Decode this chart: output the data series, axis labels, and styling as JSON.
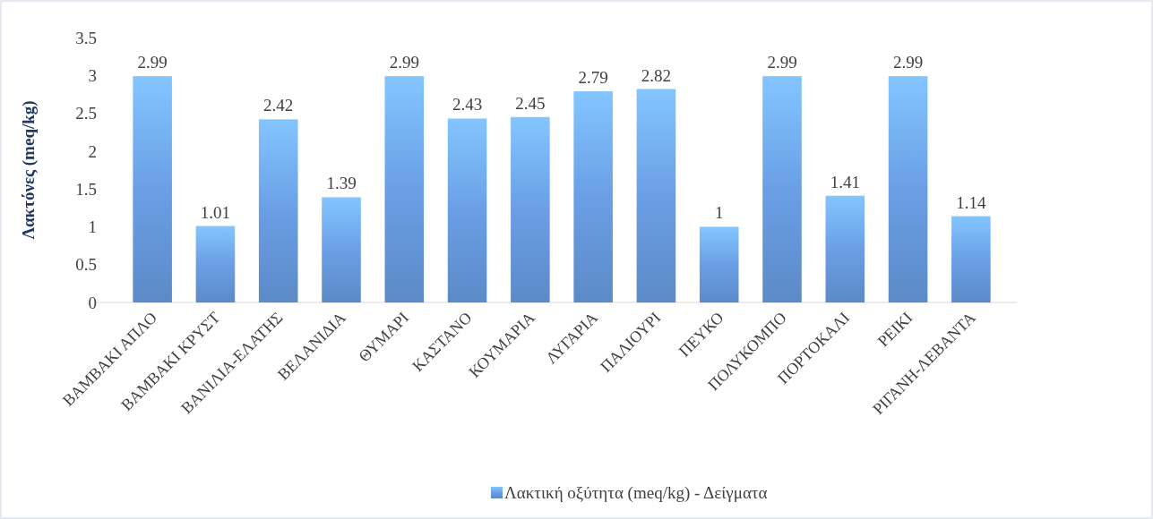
{
  "chart_data": {
    "type": "bar",
    "ylabel": "Λακτόνες (meq/kg)",
    "categories": [
      "ΒΑΜΒΑΚΙ ΑΠΛΟ",
      "ΒΑΜΒΑΚΙ ΚΡΥΣΤ",
      "ΒΑΝΙΛΙΑ-ΕΛΑΤΗΣ",
      "ΒΕΛΑΝΙΔΙΑ",
      "ΘΥΜΑΡΙ",
      "ΚΑΣΤΑΝΟ",
      "ΚΟΥΜΑΡΙΑ",
      "ΛΥΓΑΡΙΑ",
      "ΠΑΛΙΟΥΡΙ",
      "ΠΕΥΚΟ",
      "ΠΟΛΥΚΟΜΠΟ",
      "ΠΟΡΤΟΚΑΛΙ",
      "ΡΕΙΚΙ",
      "ΡΙΓΑΝΗ-ΛΕΒΑΝΤΑ"
    ],
    "series": [
      {
        "name": "Λακτική οξύτητα (meq/kg) - Δείγματα",
        "color": "#6a9fe6",
        "values": [
          2.99,
          1.01,
          2.42,
          1.39,
          2.99,
          2.43,
          2.45,
          2.79,
          2.82,
          1,
          2.99,
          1.41,
          2.99,
          1.14
        ]
      }
    ],
    "ylim": [
      0,
      3.5
    ],
    "yticks": [
      0,
      0.5,
      1,
      1.5,
      2,
      2.5,
      3,
      3.5
    ],
    "data_labels": true,
    "legend": "bottom",
    "grid": false
  }
}
